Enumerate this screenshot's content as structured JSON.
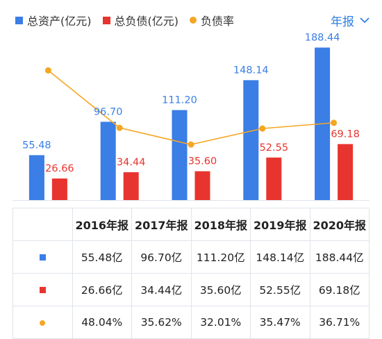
{
  "legend": [
    {
      "label": "总资产(亿元)",
      "color": "#3a7ee6",
      "shape": "square"
    },
    {
      "label": "总负债(亿元)",
      "color": "#e8342e",
      "shape": "square"
    },
    {
      "label": "负债率",
      "color": "#f5a623",
      "shape": "dot"
    }
  ],
  "period_selector": {
    "label": "年报",
    "icon": "chevron-down-icon"
  },
  "chart_data": {
    "type": "bar",
    "categories": [
      "2016年报",
      "2017年报",
      "2018年报",
      "2019年报",
      "2020年报"
    ],
    "series": [
      {
        "name": "总资产(亿元)",
        "type": "bar",
        "color": "#3a7ee6",
        "values": [
          55.48,
          96.7,
          111.2,
          148.14,
          188.44
        ],
        "labels": [
          "55.48",
          "96.70",
          "111.20",
          "148.14",
          "188.44"
        ]
      },
      {
        "name": "总负债(亿元)",
        "type": "bar",
        "color": "#e8342e",
        "values": [
          26.66,
          34.44,
          35.6,
          52.55,
          69.18
        ],
        "labels": [
          "26.66",
          "34.44",
          "35.60",
          "52.55",
          "69.18"
        ]
      },
      {
        "name": "负债率",
        "type": "line",
        "color": "#f5a623",
        "values": [
          48.04,
          35.62,
          32.01,
          35.47,
          36.71
        ]
      }
    ],
    "bar_ylim": [
      0,
      200
    ],
    "line_ylim": [
      20,
      55
    ]
  },
  "table": {
    "headers": [
      "",
      "2016年报",
      "2017年报",
      "2018年报",
      "2019年报",
      "2020年报"
    ],
    "rows": [
      {
        "marker": "square",
        "color": "#3a7ee6",
        "cells": [
          "55.48亿",
          "96.70亿",
          "111.20亿",
          "148.14亿",
          "188.44亿"
        ]
      },
      {
        "marker": "square",
        "color": "#e8342e",
        "cells": [
          "26.66亿",
          "34.44亿",
          "35.60亿",
          "52.55亿",
          "69.18亿"
        ]
      },
      {
        "marker": "dot",
        "color": "#f5a623",
        "cells": [
          "48.04%",
          "35.62%",
          "32.01%",
          "35.47%",
          "36.71%"
        ]
      }
    ]
  }
}
